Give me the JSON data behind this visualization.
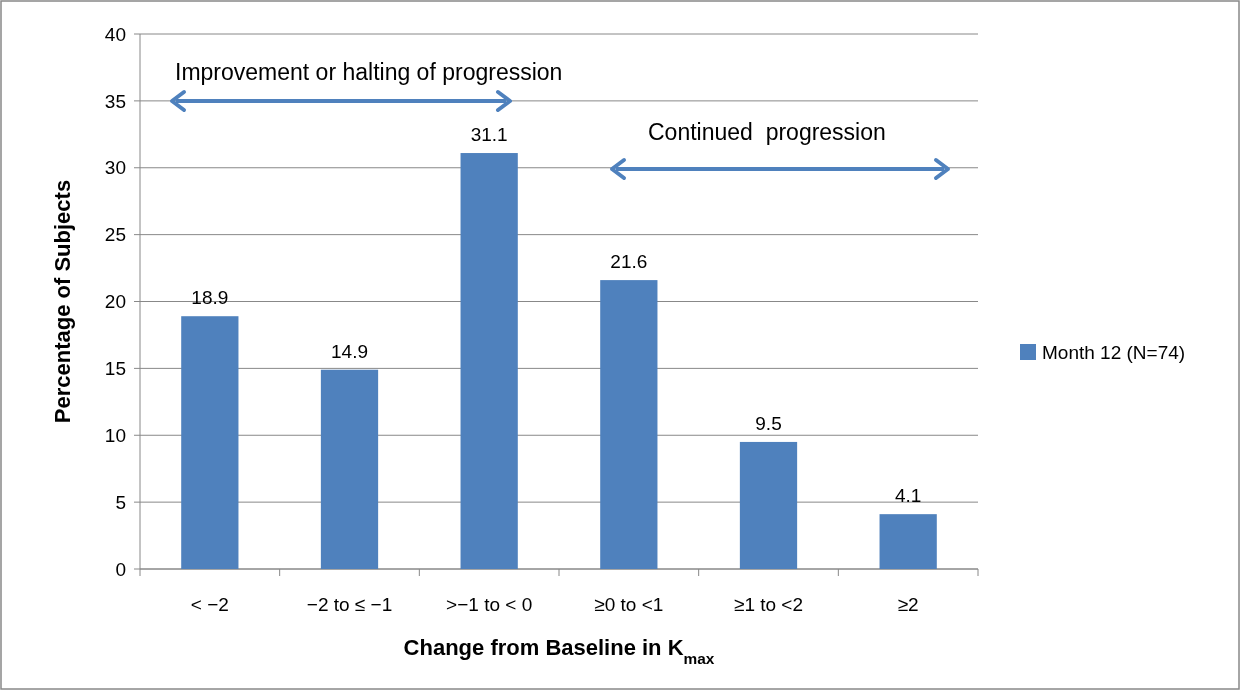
{
  "chart_data": {
    "type": "bar",
    "categories": [
      "< −2",
      "−2 to ≤ −1",
      ">−1 to < 0",
      "≥0 to <1",
      "≥1 to <2",
      "≥2"
    ],
    "series": [
      {
        "name": "Month 12 (N=74)",
        "color": "#4f81bd",
        "values": [
          18.9,
          14.9,
          31.1,
          21.6,
          9.5,
          4.1
        ]
      }
    ],
    "xlabel": "Change from Baseline in K$_{max}$",
    "ylabel": "Percentage of Subjects",
    "ylim": [
      0,
      40
    ],
    "yticks": [
      0,
      5,
      10,
      15,
      20,
      25,
      30,
      35,
      40
    ],
    "grid": "y",
    "legend": "right",
    "data_labels": true,
    "annotations": [
      "Improvement or halting of progression",
      "Continued  progression"
    ]
  }
}
